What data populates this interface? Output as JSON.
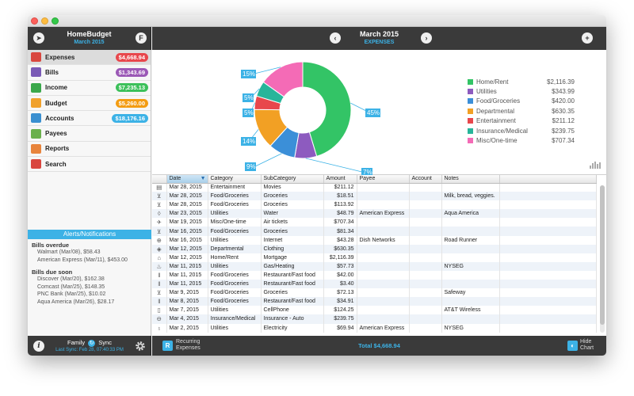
{
  "app": {
    "name": "HomeBudget",
    "period": "March 2015"
  },
  "header": {
    "title": "March 2015",
    "subtitle": "EXPENSES"
  },
  "sidebar": {
    "items": [
      {
        "label": "Expenses",
        "badge": "$4,668.94",
        "badge_color": "#e8474c",
        "icon_color": "#d9473f",
        "icon": "wallet-icon"
      },
      {
        "label": "Bills",
        "badge": "$1,343.69",
        "badge_color": "#9b59b6",
        "icon_color": "#7a5ab6",
        "icon": "bills-icon"
      },
      {
        "label": "Income",
        "badge": "$7,235.13",
        "badge_color": "#3cc05a",
        "icon_color": "#3aa84b",
        "icon": "money-bag-icon"
      },
      {
        "label": "Budget",
        "badge": "$5,260.00",
        "badge_color": "#f39c12",
        "icon_color": "#f0a12c",
        "icon": "folder-icon"
      },
      {
        "label": "Accounts",
        "badge": "$18,176.16",
        "badge_color": "#3cb2e6",
        "icon_color": "#3a8fd0",
        "icon": "accounts-icon"
      },
      {
        "label": "Payees",
        "badge": "",
        "badge_color": "",
        "icon_color": "#6ab04c",
        "icon": "people-icon"
      },
      {
        "label": "Reports",
        "badge": "",
        "badge_color": "",
        "icon_color": "#e8843c",
        "icon": "chart-icon"
      },
      {
        "label": "Search",
        "badge": "",
        "badge_color": "",
        "icon_color": "#d9473f",
        "icon": "search-icon"
      }
    ]
  },
  "alerts": {
    "title": "Alerts/Notifications",
    "groups": [
      {
        "title": "Bills overdue",
        "items": [
          "Walmart (Mar/08), $58.43",
          "American Express (Mar/11), $453.00"
        ]
      },
      {
        "title": "Bills due soon",
        "items": [
          "Discover (Mar/20), $162.38",
          "Comcast (Mar/25), $148.35",
          "PNC Bank (Mar/25), $10.02",
          "Aqua America (Mar/26), $28.17"
        ]
      }
    ]
  },
  "footer": {
    "family_label": "Family",
    "sync_label": "Sync",
    "last_sync": "Last Sync: Feb 28, 07:40:33 PM",
    "recurring_line1": "Recurring",
    "recurring_line2": "Expenses",
    "total": "Total  $4,668.94",
    "hide_line1": "Hide",
    "hide_line2": "Chart"
  },
  "chart_data": {
    "type": "pie",
    "title": "",
    "categories": [
      "Home/Rent",
      "Utilities",
      "Food/Groceries",
      "Departmental",
      "Entertainment",
      "Insurance/Medical",
      "Misc/One-time"
    ],
    "values": [
      2116.39,
      343.99,
      420.0,
      630.35,
      211.12,
      239.75,
      707.34
    ],
    "value_labels": [
      "$2,116.39",
      "$343.99",
      "$420.00",
      "$630.35",
      "$211.12",
      "$239.75",
      "$707.34"
    ],
    "percent_labels": [
      "45%",
      "7%",
      "9%",
      "14%",
      "5%",
      "5%",
      "15%"
    ],
    "colors": [
      "#33c466",
      "#8d5bbf",
      "#3b8fd8",
      "#f2a024",
      "#e8474c",
      "#27b59a",
      "#f46bb6"
    ],
    "legend": "right",
    "donut": true
  },
  "table": {
    "columns": [
      "Date",
      "Category",
      "SubCategory",
      "Amount",
      "Payee",
      "Account",
      "Notes"
    ],
    "rows": [
      {
        "icon": "film-icon",
        "glyph": "▤",
        "date": "Mar 28, 2015",
        "category": "Entertainment",
        "sub": "Movies",
        "amount": "$211.12",
        "payee": "",
        "account": "",
        "notes": ""
      },
      {
        "icon": "cart-icon",
        "glyph": "⊻",
        "date": "Mar 28, 2015",
        "category": "Food/Groceries",
        "sub": "Groceries",
        "amount": "$18.51",
        "payee": "",
        "account": "",
        "notes": "Milk, bread, veggies."
      },
      {
        "icon": "cart-icon",
        "glyph": "⊻",
        "date": "Mar 28, 2015",
        "category": "Food/Groceries",
        "sub": "Groceries",
        "amount": "$113.92",
        "payee": "",
        "account": "",
        "notes": ""
      },
      {
        "icon": "water-drop-icon",
        "glyph": "◊",
        "date": "Mar 23, 2015",
        "category": "Utilities",
        "sub": "Water",
        "amount": "$48.79",
        "payee": "American Express",
        "account": "",
        "notes": "Aqua America"
      },
      {
        "icon": "plane-icon",
        "glyph": "✈",
        "date": "Mar 19, 2015",
        "category": "Misc/One-time",
        "sub": "Air tickets",
        "amount": "$707.34",
        "payee": "",
        "account": "",
        "notes": ""
      },
      {
        "icon": "cart-icon",
        "glyph": "⊻",
        "date": "Mar 16, 2015",
        "category": "Food/Groceries",
        "sub": "Groceries",
        "amount": "$81.34",
        "payee": "",
        "account": "",
        "notes": ""
      },
      {
        "icon": "globe-icon",
        "glyph": "⊕",
        "date": "Mar 16, 2015",
        "category": "Utilities",
        "sub": "Internet",
        "amount": "$43.28",
        "payee": "Dish Networks",
        "account": "",
        "notes": "Road Runner"
      },
      {
        "icon": "tag-icon",
        "glyph": "◈",
        "date": "Mar 12, 2015",
        "category": "Departmental",
        "sub": "Clothing",
        "amount": "$630.35",
        "payee": "",
        "account": "",
        "notes": ""
      },
      {
        "icon": "house-icon",
        "glyph": "⌂",
        "date": "Mar 12, 2015",
        "category": "Home/Rent",
        "sub": "Mortgage",
        "amount": "$2,116.39",
        "payee": "",
        "account": "",
        "notes": ""
      },
      {
        "icon": "flame-icon",
        "glyph": "♨",
        "date": "Mar 11, 2015",
        "category": "Utilities",
        "sub": "Gas/Heating",
        "amount": "$57.73",
        "payee": "",
        "account": "",
        "notes": "NYSEG"
      },
      {
        "icon": "fork-knife-icon",
        "glyph": "ǁ",
        "date": "Mar 11, 2015",
        "category": "Food/Groceries",
        "sub": "Restaurant/Fast food",
        "amount": "$42.00",
        "payee": "",
        "account": "",
        "notes": ""
      },
      {
        "icon": "fork-knife-icon",
        "glyph": "ǁ",
        "date": "Mar 11, 2015",
        "category": "Food/Groceries",
        "sub": "Restaurant/Fast food",
        "amount": "$3.40",
        "payee": "",
        "account": "",
        "notes": ""
      },
      {
        "icon": "cart-icon",
        "glyph": "⊻",
        "date": "Mar 9, 2015",
        "category": "Food/Groceries",
        "sub": "Groceries",
        "amount": "$72.13",
        "payee": "",
        "account": "",
        "notes": "Safeway"
      },
      {
        "icon": "fork-knife-icon",
        "glyph": "ǁ",
        "date": "Mar 8, 2015",
        "category": "Food/Groceries",
        "sub": "Restaurant/Fast food",
        "amount": "$34.91",
        "payee": "",
        "account": "",
        "notes": ""
      },
      {
        "icon": "phone-icon",
        "glyph": "▯",
        "date": "Mar 7, 2015",
        "category": "Utilities",
        "sub": "CellPhone",
        "amount": "$124.25",
        "payee": "",
        "account": "",
        "notes": "AT&T Wireless"
      },
      {
        "icon": "car-icon",
        "glyph": "⊖",
        "date": "Mar 4, 2015",
        "category": "Insurance/Medical",
        "sub": "Insurance - Auto",
        "amount": "$239.75",
        "payee": "",
        "account": "",
        "notes": ""
      },
      {
        "icon": "bulb-icon",
        "glyph": "♁",
        "date": "Mar 2, 2015",
        "category": "Utilities",
        "sub": "Electricity",
        "amount": "$69.94",
        "payee": "American Express",
        "account": "",
        "notes": "NYSEG"
      }
    ]
  }
}
